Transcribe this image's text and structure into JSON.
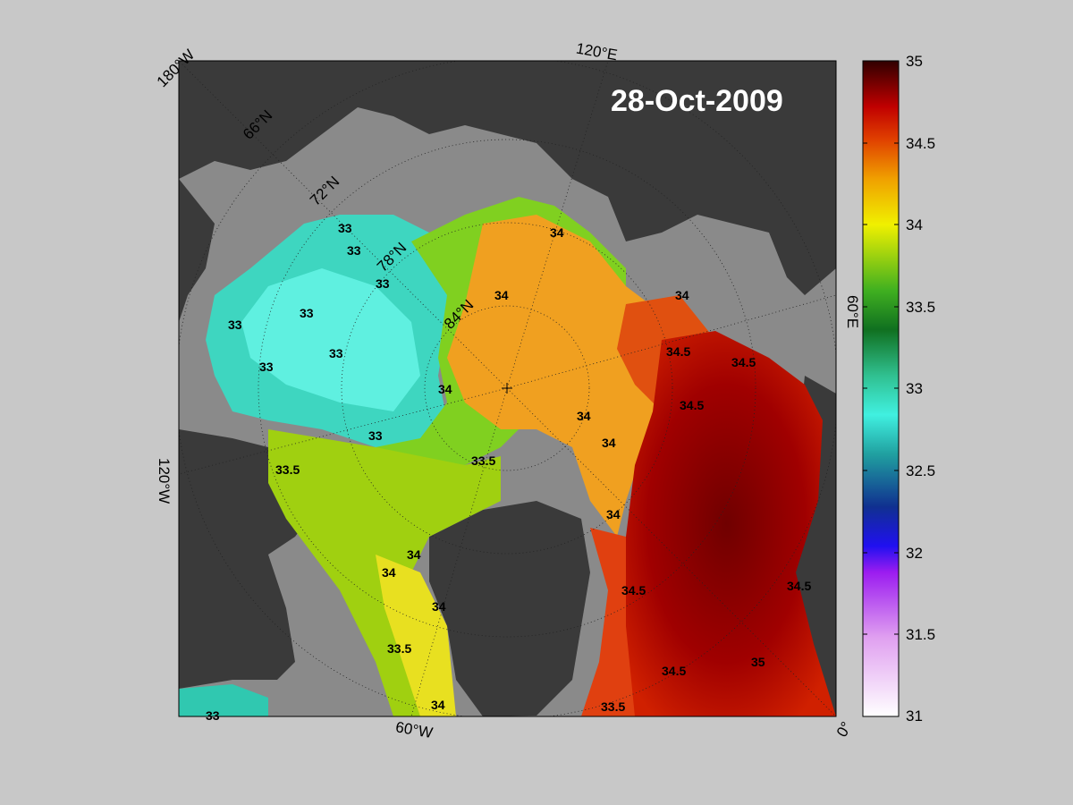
{
  "date": "28-Oct-2009",
  "grid_labels": {
    "lon_180w": "180°W",
    "lon_120e": "120°E",
    "lon_60e": "60°E",
    "lon_120w": "120°W",
    "lon_60w": "60°W",
    "lon_0": "0°",
    "lat_66n": "66°N",
    "lat_72n": "72°N",
    "lat_78n": "78°N",
    "lat_84n": "84°N"
  },
  "contour_labels": [
    "33",
    "33",
    "33",
    "33",
    "33",
    "33",
    "33",
    "33",
    "33.5",
    "33.5",
    "33.5",
    "33.5",
    "34",
    "34",
    "34",
    "34",
    "34",
    "34",
    "34",
    "34",
    "34",
    "34",
    "34",
    "34.5",
    "34.5",
    "34.5",
    "34.5",
    "34.5",
    "34.5",
    "33",
    "35"
  ],
  "colorbar": {
    "ticks": [
      "35",
      "34.5",
      "34",
      "33.5",
      "33",
      "32.5",
      "32",
      "31.5",
      "31"
    ],
    "min": 31,
    "max": 35,
    "colors": {
      "land": "#3a3a3a",
      "ice_shelf": "#8a8a8a",
      "background": "#c8c8c8"
    }
  }
}
